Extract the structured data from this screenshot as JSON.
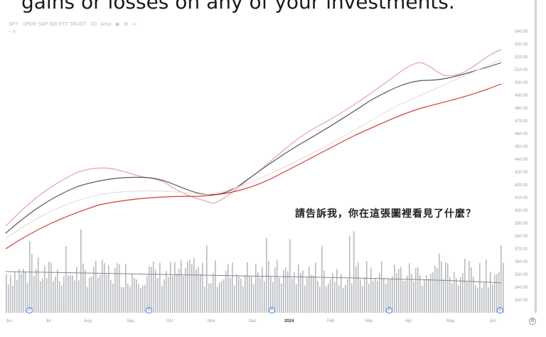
{
  "caption": "gains or losses on any of your investments.",
  "legend": {
    "line1": [
      "SPY",
      "SPDR S&P 500 ETF TRUST",
      "1D",
      "Arca"
    ],
    "line2": "~ 5"
  },
  "overlay_question": "請告訴我，你在這張圖裡看見了什麼？",
  "price_axis": [
    "540.00",
    "530.00",
    "520.00",
    "510.00",
    "500.00",
    "490.00",
    "480.00",
    "470.00",
    "460.00",
    "450.00",
    "440.00",
    "430.00",
    "420.00",
    "410.00",
    "400.00",
    "390.00",
    "380.00",
    "370.00",
    "360.00",
    "350.00",
    "340.00",
    "330.00"
  ],
  "time_axis": [
    "Jun",
    "Jul",
    "Aug",
    "Sep",
    "Oct",
    "Nov",
    "Dec",
    "2024",
    "Feb",
    "Mar",
    "Apr",
    "May",
    "Jun"
  ],
  "time_axis_bold": "2024",
  "event_markers": [
    "D",
    "D",
    "D",
    "D",
    "E"
  ],
  "colors": {
    "line_red": "#d63a3a",
    "line_dark": "#5a5560",
    "line_pink": "#e7a3a8",
    "volume": "#b7babf",
    "event_marker": "#4a7fd9"
  }
}
